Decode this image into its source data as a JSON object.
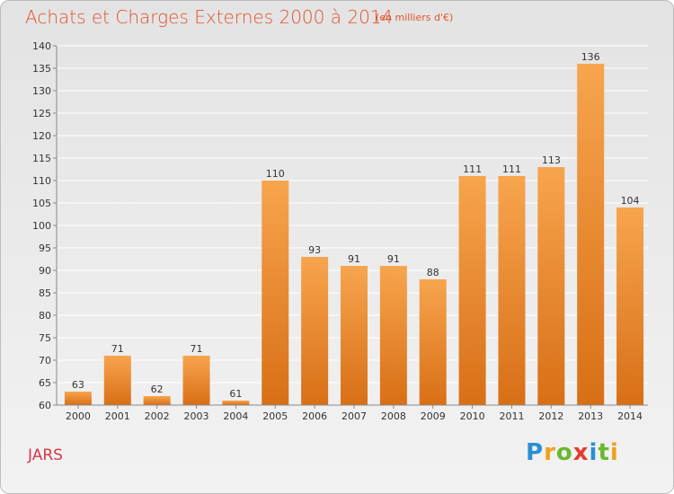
{
  "title": "Achats et Charges Externes 2000 à 2014",
  "subtitle": "(en milliers d'€)",
  "location": "JARS",
  "logo": {
    "text": "Proxiti",
    "letters": [
      "P",
      "r",
      "o",
      "x",
      "i",
      "t",
      "i"
    ],
    "colors": [
      "#2a8fd6",
      "#f0a020",
      "#6ab82e",
      "#e23c2e",
      "#2a8fd6",
      "#6ab82e",
      "#f0a020"
    ]
  },
  "colors": {
    "bar_top": "#f7a54e",
    "bar_bottom": "#d86f16",
    "grid": "#ffffff",
    "axis": "#888888",
    "text": "#333333"
  },
  "chart_data": {
    "type": "bar",
    "categories": [
      "2000",
      "2001",
      "2002",
      "2003",
      "2004",
      "2005",
      "2006",
      "2007",
      "2008",
      "2009",
      "2010",
      "2011",
      "2012",
      "2013",
      "2014"
    ],
    "values": [
      63,
      71,
      62,
      71,
      61,
      110,
      93,
      91,
      91,
      88,
      111,
      111,
      113,
      136,
      104
    ],
    "ylim": [
      60,
      140
    ],
    "yticks": [
      60,
      65,
      70,
      75,
      80,
      85,
      90,
      95,
      100,
      105,
      110,
      115,
      120,
      125,
      130,
      135,
      140
    ],
    "xlabel": "",
    "ylabel": "",
    "grid": true
  }
}
